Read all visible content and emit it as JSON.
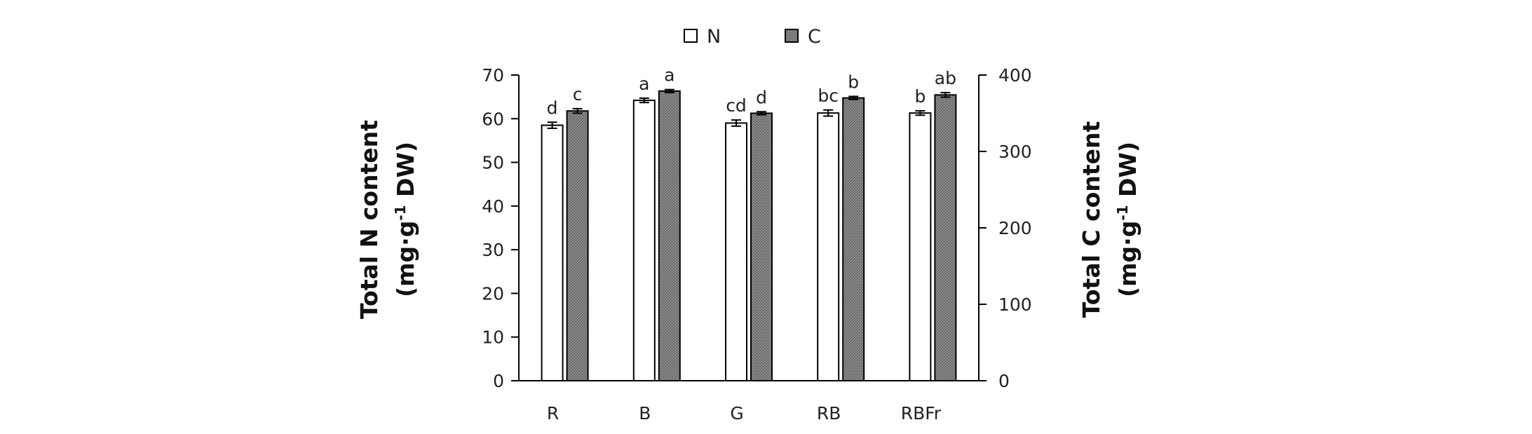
{
  "chart_data": {
    "type": "bar",
    "categories": [
      "R",
      "B",
      "G",
      "RB",
      "RBFr"
    ],
    "series": [
      {
        "name": "N",
        "axis": "left",
        "values": [
          58.5,
          64.2,
          59.0,
          61.3,
          61.3
        ],
        "errors": [
          0.7,
          0.5,
          0.7,
          0.7,
          0.5
        ],
        "significance": [
          "d",
          "a",
          "cd",
          "bc",
          "b"
        ],
        "fill": "#ffffff"
      },
      {
        "name": "C",
        "axis": "right",
        "values": [
          353,
          379,
          350,
          370,
          374
        ],
        "errors": [
          3,
          2,
          2,
          2,
          3
        ],
        "significance": [
          "c",
          "a",
          "d",
          "b",
          "ab"
        ],
        "fill": "#8c8c8c"
      }
    ],
    "y_left": {
      "label_line1": "Total N content",
      "label_line2_prefix": "(mg·g",
      "label_line2_sup": "-1",
      "label_line2_suffix": " DW)",
      "ylim": [
        0,
        70
      ],
      "ticks": [
        "0",
        "10",
        "20",
        "30",
        "40",
        "50",
        "60",
        "70"
      ]
    },
    "y_right": {
      "label_line1": "Total C content",
      "label_line2_prefix": "(mg·g",
      "label_line2_sup": "-1",
      "label_line2_suffix": " DW)",
      "ylim": [
        0,
        400
      ],
      "ticks": [
        "0",
        "100",
        "200",
        "300",
        "400"
      ]
    },
    "legend": {
      "position": "top-center",
      "items": [
        "N",
        "C"
      ]
    },
    "grid": false
  }
}
